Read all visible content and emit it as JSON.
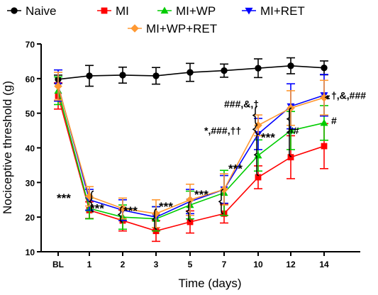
{
  "chart_data": {
    "type": "line",
    "title": "",
    "xlabel": "Time (days)",
    "ylabel": "Nociceptive threshold (g)",
    "categories": [
      "BL",
      "1",
      "2",
      "3",
      "5",
      "7",
      "10",
      "12",
      "14"
    ],
    "ylim": [
      10,
      70
    ],
    "yticks": [
      10,
      20,
      30,
      40,
      50,
      60,
      70
    ],
    "grid": false,
    "legend_placement": "top",
    "series": [
      {
        "name": "Naive",
        "color": "#000000",
        "marker": "circle",
        "values": [
          59.8,
          60.8,
          61.0,
          60.8,
          61.8,
          62.3,
          63.0,
          63.7,
          63.1
        ],
        "errors": [
          1.2,
          3.0,
          2.3,
          2.4,
          2.6,
          1.9,
          2.7,
          2.3,
          2.0
        ]
      },
      {
        "name": "MI",
        "color": "#ff0000",
        "marker": "square",
        "values": [
          55.0,
          22.0,
          19.0,
          16.0,
          18.6,
          21.0,
          31.5,
          37.3,
          40.5
        ],
        "errors": [
          3.8,
          2.4,
          3.0,
          3.0,
          3.2,
          2.7,
          3.3,
          6.2,
          6.5
        ]
      },
      {
        "name": "MI+WP",
        "color": "#00cc00",
        "marker": "triangle-up",
        "values": [
          56.5,
          22.5,
          20.0,
          19.5,
          23.5,
          27.0,
          37.8,
          45.0,
          47.2
        ],
        "errors": [
          4.0,
          3.0,
          3.5,
          3.5,
          4.0,
          6.5,
          4.5,
          5.5,
          5.0
        ]
      },
      {
        "name": "MI+RET",
        "color": "#0000ff",
        "marker": "triangle-down",
        "values": [
          58.0,
          25.0,
          22.0,
          20.0,
          24.5,
          28.0,
          44.0,
          52.0,
          55.2
        ],
        "errors": [
          4.5,
          3.0,
          3.0,
          3.0,
          3.5,
          4.0,
          4.5,
          6.5,
          6.0
        ]
      },
      {
        "name": "MI+WP+RET",
        "color": "#ff9933",
        "marker": "diamond",
        "values": [
          57.8,
          26.0,
          22.5,
          21.0,
          25.0,
          28.0,
          46.5,
          51.5,
          54.5
        ],
        "errors": [
          4.0,
          2.8,
          3.0,
          4.0,
          4.5,
          4.5,
          3.0,
          5.0,
          5.0
        ]
      }
    ],
    "annotations": [
      {
        "text": "***",
        "category": "1",
        "y": 26
      },
      {
        "text": "***",
        "category": "2",
        "y": 23
      },
      {
        "text": "***",
        "category": "3",
        "y": 22.3
      },
      {
        "text": "***",
        "category": "5",
        "y": 23.5
      },
      {
        "text": "***",
        "category": "7",
        "y": 27
      },
      {
        "text": "***",
        "category": "10",
        "y": 34.5
      },
      {
        "text": "***",
        "category": "12",
        "y": 43.5
      },
      {
        "text": "*,###,††",
        "category": "10",
        "y": 44.8
      },
      {
        "text": "###,&,†",
        "category": "10",
        "y": 51.5
      },
      {
        "text": "##",
        "category": "12",
        "y": 44.8
      },
      {
        "text": "#",
        "category": "14",
        "y": 47.7
      },
      {
        "text": "†,&,###",
        "category": "14",
        "y": 55
      }
    ]
  }
}
